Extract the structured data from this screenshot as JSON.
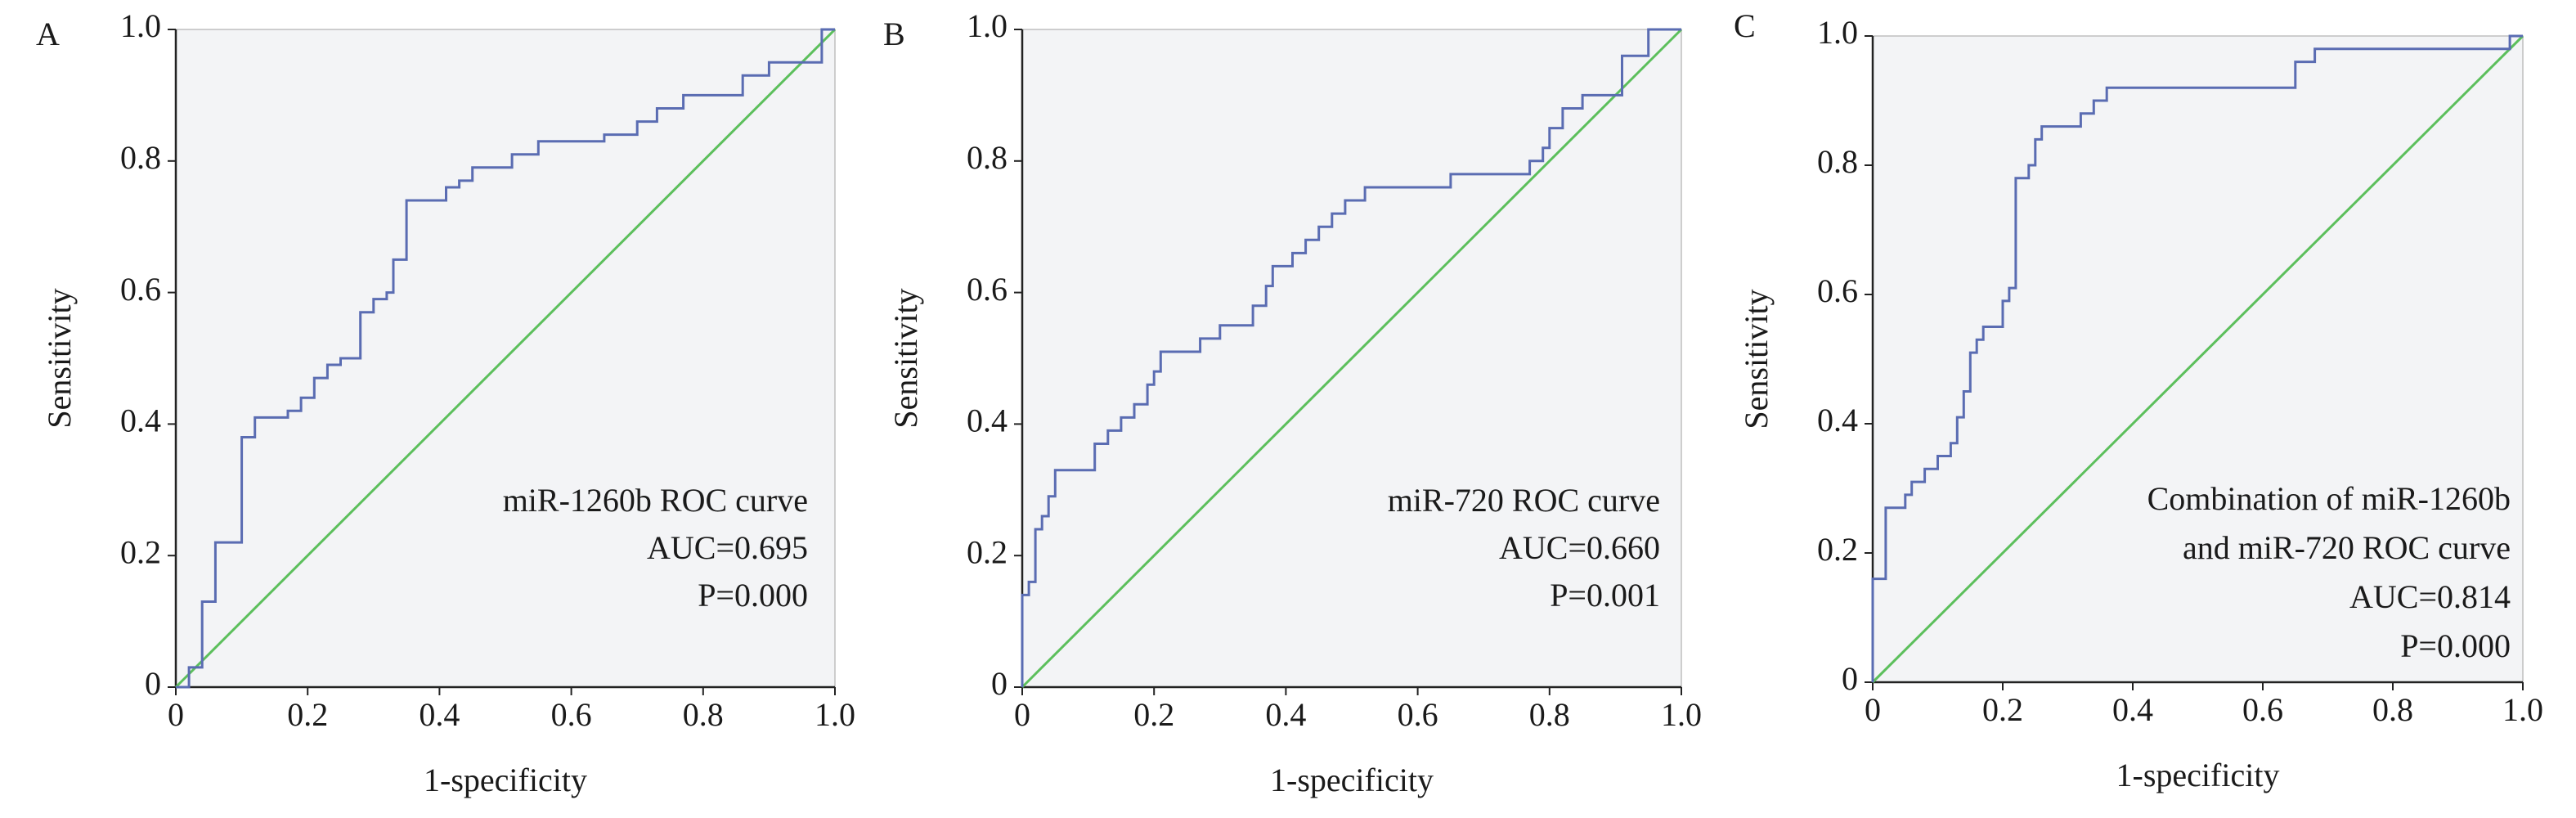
{
  "chart_data": [
    {
      "type": "line",
      "label": "A",
      "xlabel": "1-specificity",
      "ylabel": "Sensitivity",
      "annotations": [
        "miR-1260b ROC curve",
        "AUC=0.695",
        "P=0.000"
      ],
      "xlim": [
        0,
        1
      ],
      "ylim": [
        0,
        1
      ],
      "xticks": [
        0,
        0.2,
        0.4,
        0.6,
        0.8,
        {
          "value": 1,
          "label": "1.0"
        }
      ],
      "yticks": [
        0,
        0.2,
        0.4,
        0.6,
        0.8,
        {
          "value": 1,
          "label": "1.0"
        }
      ],
      "series": [
        {
          "color": "#5a6cb2",
          "x": [
            0,
            0.02,
            0.02,
            0.04,
            0.04,
            0.06,
            0.06,
            0.1,
            0.1,
            0.12,
            0.12,
            0.17,
            0.17,
            0.19,
            0.19,
            0.21,
            0.21,
            0.23,
            0.23,
            0.25,
            0.25,
            0.28,
            0.28,
            0.3,
            0.3,
            0.32,
            0.32,
            0.33,
            0.33,
            0.35,
            0.35,
            0.41,
            0.41,
            0.43,
            0.43,
            0.45,
            0.45,
            0.51,
            0.51,
            0.55,
            0.55,
            0.65,
            0.65,
            0.7,
            0.7,
            0.73,
            0.73,
            0.77,
            0.77,
            0.86,
            0.86,
            0.9,
            0.9,
            0.98,
            0.98,
            1
          ],
          "values": [
            0,
            0,
            0.03,
            0.03,
            0.13,
            0.13,
            0.22,
            0.22,
            0.38,
            0.38,
            0.41,
            0.41,
            0.42,
            0.42,
            0.44,
            0.44,
            0.47,
            0.47,
            0.49,
            0.49,
            0.5,
            0.5,
            0.57,
            0.57,
            0.59,
            0.59,
            0.6,
            0.6,
            0.65,
            0.65,
            0.74,
            0.74,
            0.76,
            0.76,
            0.77,
            0.77,
            0.79,
            0.79,
            0.81,
            0.81,
            0.83,
            0.83,
            0.84,
            0.84,
            0.86,
            0.86,
            0.88,
            0.88,
            0.9,
            0.9,
            0.93,
            0.93,
            0.95,
            0.95,
            1,
            1
          ]
        },
        {
          "color": "#5cbf5c",
          "x": [
            0,
            1
          ],
          "values": [
            0,
            1
          ]
        }
      ]
    },
    {
      "type": "line",
      "label": "B",
      "xlabel": "1-specificity",
      "ylabel": "Sensitivity",
      "annotations": [
        "miR-720 ROC curve",
        "AUC=0.660",
        "P=0.001"
      ],
      "xlim": [
        0,
        1
      ],
      "ylim": [
        0,
        1
      ],
      "xticks": [
        0,
        0.2,
        0.4,
        0.6,
        0.8,
        {
          "value": 1,
          "label": "1.0"
        }
      ],
      "yticks": [
        0,
        0.2,
        0.4,
        0.6,
        0.8,
        {
          "value": 1,
          "label": "1.0"
        }
      ],
      "series": [
        {
          "color": "#5a6cb2",
          "x": [
            0,
            0,
            0.01,
            0.01,
            0.02,
            0.02,
            0.03,
            0.03,
            0.04,
            0.04,
            0.05,
            0.05,
            0.11,
            0.11,
            0.13,
            0.13,
            0.15,
            0.15,
            0.17,
            0.17,
            0.19,
            0.19,
            0.2,
            0.2,
            0.21,
            0.21,
            0.27,
            0.27,
            0.3,
            0.3,
            0.35,
            0.35,
            0.37,
            0.37,
            0.38,
            0.38,
            0.41,
            0.41,
            0.43,
            0.43,
            0.45,
            0.45,
            0.47,
            0.47,
            0.49,
            0.49,
            0.52,
            0.52,
            0.65,
            0.65,
            0.77,
            0.77,
            0.79,
            0.79,
            0.8,
            0.8,
            0.82,
            0.82,
            0.85,
            0.85,
            0.91,
            0.91,
            0.95,
            0.95,
            1
          ],
          "values": [
            0,
            0.14,
            0.14,
            0.16,
            0.16,
            0.24,
            0.24,
            0.26,
            0.26,
            0.29,
            0.29,
            0.33,
            0.33,
            0.37,
            0.37,
            0.39,
            0.39,
            0.41,
            0.41,
            0.43,
            0.43,
            0.46,
            0.46,
            0.48,
            0.48,
            0.51,
            0.51,
            0.53,
            0.53,
            0.55,
            0.55,
            0.58,
            0.58,
            0.61,
            0.61,
            0.64,
            0.64,
            0.66,
            0.66,
            0.68,
            0.68,
            0.7,
            0.7,
            0.72,
            0.72,
            0.74,
            0.74,
            0.76,
            0.76,
            0.78,
            0.78,
            0.8,
            0.8,
            0.82,
            0.82,
            0.85,
            0.85,
            0.88,
            0.88,
            0.9,
            0.9,
            0.96,
            0.96,
            1,
            1
          ]
        },
        {
          "color": "#5cbf5c",
          "x": [
            0,
            1
          ],
          "values": [
            0,
            1
          ]
        }
      ]
    },
    {
      "type": "line",
      "label": "C",
      "xlabel": "1-specificity",
      "ylabel": "Sensitivity",
      "annotations": [
        "Combination of miR-1260b",
        "and miR-720 ROC curve",
        "AUC=0.814",
        "P=0.000"
      ],
      "xlim": [
        0,
        1
      ],
      "ylim": [
        0,
        1
      ],
      "xticks": [
        0,
        0.2,
        0.4,
        0.6,
        0.8,
        {
          "value": 1,
          "label": "1.0"
        }
      ],
      "yticks": [
        0,
        0.2,
        0.4,
        0.6,
        0.8,
        {
          "value": 1,
          "label": "1.0"
        }
      ],
      "series": [
        {
          "color": "#5a6cb2",
          "x": [
            0,
            0,
            0.02,
            0.02,
            0.05,
            0.05,
            0.06,
            0.06,
            0.08,
            0.08,
            0.1,
            0.1,
            0.12,
            0.12,
            0.13,
            0.13,
            0.14,
            0.14,
            0.15,
            0.15,
            0.16,
            0.16,
            0.17,
            0.17,
            0.2,
            0.2,
            0.21,
            0.21,
            0.22,
            0.22,
            0.24,
            0.24,
            0.25,
            0.25,
            0.26,
            0.26,
            0.32,
            0.32,
            0.34,
            0.34,
            0.36,
            0.36,
            0.65,
            0.65,
            0.68,
            0.68,
            0.98,
            0.98,
            1
          ],
          "values": [
            0,
            0.16,
            0.16,
            0.27,
            0.27,
            0.29,
            0.29,
            0.31,
            0.31,
            0.33,
            0.33,
            0.35,
            0.35,
            0.37,
            0.37,
            0.41,
            0.41,
            0.45,
            0.45,
            0.51,
            0.51,
            0.53,
            0.53,
            0.55,
            0.55,
            0.59,
            0.59,
            0.61,
            0.61,
            0.78,
            0.78,
            0.8,
            0.8,
            0.84,
            0.84,
            0.86,
            0.86,
            0.88,
            0.88,
            0.9,
            0.9,
            0.92,
            0.92,
            0.96,
            0.96,
            0.98,
            0.98,
            1,
            1
          ]
        },
        {
          "color": "#5cbf5c",
          "x": [
            0,
            1
          ],
          "values": [
            0,
            1
          ]
        }
      ]
    }
  ]
}
